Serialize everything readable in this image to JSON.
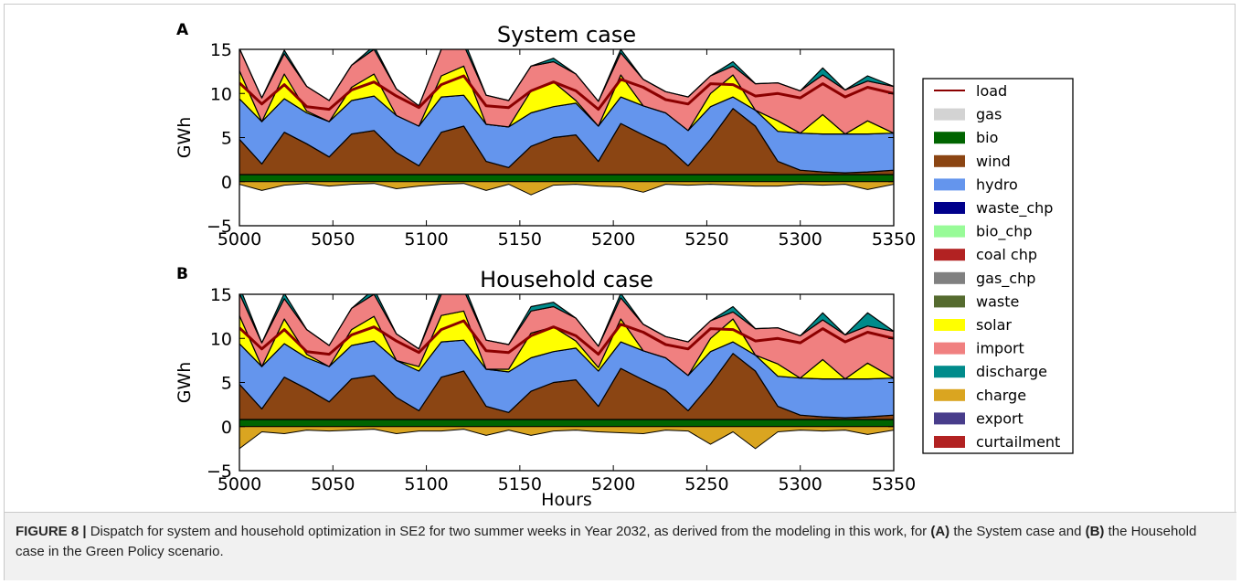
{
  "figure": {
    "caption_label": "FIGURE 8 |",
    "caption_pre": " Dispatch for system and household optimization in SE2 for two summer weeks in Year 2032, as derived from the modeling in this work, for ",
    "caption_a": "(A)",
    "caption_mid": " the System case and ",
    "caption_b": "(B)",
    "caption_post": " the Household case in the Green Policy scenario."
  },
  "colors": {
    "load": "#8b0000",
    "gas": "#d3d3d3",
    "bio": "#006400",
    "wind": "#8b4513",
    "hydro": "#6495ed",
    "waste_chp": "#00008b",
    "bio_chp": "#98fb98",
    "coal_chp": "#b22222",
    "gas_chp": "#808080",
    "waste": "#556b2f",
    "solar": "#ffff00",
    "import": "#f08080",
    "discharge": "#008b8b",
    "charge": "#daa520",
    "export": "#483d8b",
    "curtailment": "#b22222"
  },
  "chart_data": [
    {
      "type": "area",
      "panel_letter": "A",
      "title": "System case",
      "xlabel": "",
      "ylabel": "GWh",
      "xlim": [
        5000,
        5350
      ],
      "ylim": [
        -5,
        15
      ],
      "xticks": [
        5000,
        5050,
        5100,
        5150,
        5200,
        5250,
        5300,
        5350
      ],
      "yticks": [
        -5,
        0,
        5,
        10,
        15
      ],
      "x": [
        5000,
        5012,
        5024,
        5036,
        5048,
        5060,
        5072,
        5084,
        5096,
        5108,
        5120,
        5132,
        5144,
        5156,
        5168,
        5180,
        5192,
        5204,
        5216,
        5228,
        5240,
        5252,
        5264,
        5276,
        5288,
        5300,
        5312,
        5324,
        5336,
        5350
      ],
      "series": [
        {
          "name": "bio",
          "values": [
            0.8,
            0.8,
            0.8,
            0.8,
            0.8,
            0.8,
            0.8,
            0.8,
            0.8,
            0.8,
            0.8,
            0.8,
            0.8,
            0.8,
            0.8,
            0.8,
            0.8,
            0.8,
            0.8,
            0.8,
            0.8,
            0.8,
            0.8,
            0.8,
            0.8,
            0.8,
            0.8,
            0.8,
            0.8,
            0.8
          ]
        },
        {
          "name": "wind",
          "values": [
            4.0,
            1.2,
            4.8,
            3.5,
            2.0,
            4.6,
            5.0,
            2.5,
            1.0,
            4.8,
            5.5,
            1.5,
            0.8,
            3.2,
            4.2,
            4.5,
            1.5,
            5.8,
            4.5,
            3.3,
            1.0,
            4.0,
            7.5,
            5.5,
            1.5,
            0.5,
            0.3,
            0.2,
            0.3,
            0.5
          ]
        },
        {
          "name": "hydro",
          "values": [
            4.6,
            4.8,
            3.8,
            3.5,
            4.0,
            3.8,
            3.9,
            4.2,
            4.5,
            4.0,
            3.5,
            4.2,
            4.6,
            3.8,
            3.5,
            3.6,
            4.0,
            3.0,
            3.3,
            3.7,
            4.0,
            3.7,
            1.3,
            1.8,
            3.4,
            4.2,
            4.3,
            4.4,
            4.3,
            4.2
          ]
        },
        {
          "name": "solar",
          "values": [
            3.2,
            0.0,
            2.8,
            0.2,
            0.0,
            1.5,
            2.5,
            0.0,
            0.0,
            2.4,
            3.3,
            0.0,
            0.0,
            2.5,
            2.8,
            0.3,
            0.0,
            2.5,
            0.0,
            0.0,
            0.0,
            1.5,
            2.5,
            0.0,
            1.2,
            0.0,
            2.2,
            0.0,
            1.5,
            0.0
          ]
        },
        {
          "name": "import",
          "values": [
            2.5,
            2.7,
            2.3,
            2.8,
            2.4,
            2.5,
            2.8,
            3.0,
            2.3,
            3.0,
            2.4,
            3.3,
            3.0,
            2.8,
            2.3,
            3.0,
            2.8,
            2.5,
            3.0,
            2.4,
            3.8,
            2.0,
            1.0,
            3.0,
            4.3,
            4.8,
            4.5,
            5.0,
            4.5,
            5.3
          ]
        },
        {
          "name": "discharge",
          "values": [
            0.0,
            0.0,
            0.4,
            0.0,
            0.0,
            0.0,
            0.4,
            0.0,
            0.0,
            0.0,
            0.6,
            0.0,
            0.0,
            0.0,
            0.4,
            0.0,
            0.0,
            0.4,
            0.0,
            0.0,
            0.0,
            0.0,
            0.5,
            0.0,
            0.0,
            0.0,
            0.8,
            0.0,
            0.6,
            0.0
          ]
        },
        {
          "name": "charge",
          "values": [
            -0.3,
            -1.0,
            -0.4,
            -0.2,
            -0.5,
            -0.3,
            -0.2,
            -0.8,
            -0.5,
            -0.3,
            -0.2,
            -1.0,
            -0.3,
            -1.5,
            -0.4,
            -0.3,
            -0.5,
            -0.6,
            -1.2,
            -0.3,
            -0.4,
            -0.3,
            -0.4,
            -0.5,
            -0.5,
            -0.3,
            -0.4,
            -0.3,
            -0.9,
            -0.3
          ]
        }
      ],
      "load": [
        11.2,
        8.8,
        11.0,
        8.5,
        8.2,
        10.4,
        11.3,
        9.7,
        8.4,
        11.0,
        12.0,
        8.6,
        8.4,
        10.3,
        11.3,
        10.3,
        8.2,
        11.6,
        10.7,
        9.3,
        8.8,
        11.1,
        11.0,
        9.7,
        10.0,
        9.5,
        11.1,
        9.6,
        10.7,
        10.0
      ]
    },
    {
      "type": "area",
      "panel_letter": "B",
      "title": "Household case",
      "xlabel": "Hours",
      "ylabel": "GWh",
      "xlim": [
        5000,
        5350
      ],
      "ylim": [
        -5,
        15
      ],
      "xticks": [
        5000,
        5050,
        5100,
        5150,
        5200,
        5250,
        5300,
        5350
      ],
      "yticks": [
        -5,
        0,
        5,
        10,
        15
      ],
      "x": [
        5000,
        5012,
        5024,
        5036,
        5048,
        5060,
        5072,
        5084,
        5096,
        5108,
        5120,
        5132,
        5144,
        5156,
        5168,
        5180,
        5192,
        5204,
        5216,
        5228,
        5240,
        5252,
        5264,
        5276,
        5288,
        5300,
        5312,
        5324,
        5336,
        5350
      ],
      "series": [
        {
          "name": "bio",
          "values": [
            0.8,
            0.8,
            0.8,
            0.8,
            0.8,
            0.8,
            0.8,
            0.8,
            0.8,
            0.8,
            0.8,
            0.8,
            0.8,
            0.8,
            0.8,
            0.8,
            0.8,
            0.8,
            0.8,
            0.8,
            0.8,
            0.8,
            0.8,
            0.8,
            0.8,
            0.8,
            0.8,
            0.8,
            0.8,
            0.8
          ]
        },
        {
          "name": "wind",
          "values": [
            4.0,
            1.2,
            4.8,
            3.5,
            2.0,
            4.6,
            5.0,
            2.5,
            1.0,
            4.8,
            5.5,
            1.5,
            0.8,
            3.2,
            4.2,
            4.5,
            1.5,
            5.8,
            4.5,
            3.3,
            1.0,
            4.0,
            7.5,
            5.5,
            1.5,
            0.5,
            0.3,
            0.2,
            0.3,
            0.5
          ]
        },
        {
          "name": "hydro",
          "values": [
            4.6,
            4.8,
            3.8,
            3.5,
            4.0,
            3.8,
            3.9,
            4.2,
            4.5,
            4.0,
            3.5,
            4.2,
            4.6,
            3.8,
            3.5,
            3.6,
            4.0,
            3.0,
            3.3,
            3.7,
            4.0,
            3.7,
            1.3,
            1.8,
            3.4,
            4.2,
            4.3,
            4.4,
            4.3,
            4.2
          ]
        },
        {
          "name": "solar",
          "values": [
            3.2,
            0.0,
            2.8,
            0.4,
            0.0,
            1.8,
            2.8,
            0.0,
            0.5,
            3.0,
            3.3,
            0.0,
            0.3,
            2.8,
            2.8,
            0.8,
            0.4,
            2.6,
            0.0,
            0.0,
            0.0,
            1.5,
            2.6,
            0.0,
            1.4,
            0.0,
            2.2,
            0.0,
            1.8,
            0.0
          ]
        },
        {
          "name": "import",
          "values": [
            2.5,
            2.7,
            2.3,
            2.8,
            2.4,
            2.4,
            2.5,
            3.0,
            2.0,
            2.4,
            2.4,
            3.3,
            2.8,
            2.5,
            2.3,
            2.6,
            2.4,
            2.4,
            3.0,
            2.4,
            3.8,
            2.0,
            0.8,
            3.0,
            4.1,
            4.8,
            4.5,
            5.0,
            4.2,
            5.3
          ]
        },
        {
          "name": "discharge",
          "values": [
            0.8,
            0.0,
            0.6,
            0.0,
            0.0,
            0.0,
            0.6,
            0.0,
            0.0,
            0.6,
            0.6,
            0.0,
            0.0,
            0.5,
            0.5,
            0.0,
            0.0,
            0.5,
            0.0,
            0.0,
            0.0,
            0.0,
            0.6,
            0.0,
            0.0,
            0.0,
            0.8,
            0.0,
            1.5,
            0.0
          ]
        },
        {
          "name": "charge",
          "values": [
            -2.5,
            -0.6,
            -0.8,
            -0.4,
            -0.5,
            -0.4,
            -0.3,
            -0.8,
            -0.5,
            -0.5,
            -0.3,
            -1.0,
            -0.4,
            -1.0,
            -0.5,
            -0.4,
            -0.6,
            -0.7,
            -0.8,
            -0.4,
            -0.5,
            -2.0,
            -0.6,
            -2.5,
            -0.6,
            -0.4,
            -0.5,
            -0.4,
            -0.9,
            -0.4
          ]
        }
      ],
      "load": [
        11.2,
        8.8,
        11.0,
        8.5,
        8.2,
        10.4,
        11.3,
        9.7,
        8.4,
        11.0,
        12.0,
        8.6,
        8.4,
        10.3,
        11.3,
        10.3,
        8.2,
        11.6,
        10.7,
        9.3,
        8.8,
        11.1,
        11.0,
        9.7,
        10.0,
        9.5,
        11.1,
        9.6,
        10.7,
        10.0
      ]
    }
  ],
  "legend": {
    "placement": "right",
    "entries": [
      "load",
      "gas",
      "bio",
      "wind",
      "hydro",
      "waste_chp",
      "bio_chp",
      "coal chp",
      "gas_chp",
      "waste",
      "solar",
      "import",
      "discharge",
      "charge",
      "export",
      "curtailment"
    ],
    "keys": [
      "load",
      "gas",
      "bio",
      "wind",
      "hydro",
      "waste_chp",
      "bio_chp",
      "coal_chp",
      "gas_chp",
      "waste",
      "solar",
      "import",
      "discharge",
      "charge",
      "export",
      "curtailment"
    ]
  }
}
